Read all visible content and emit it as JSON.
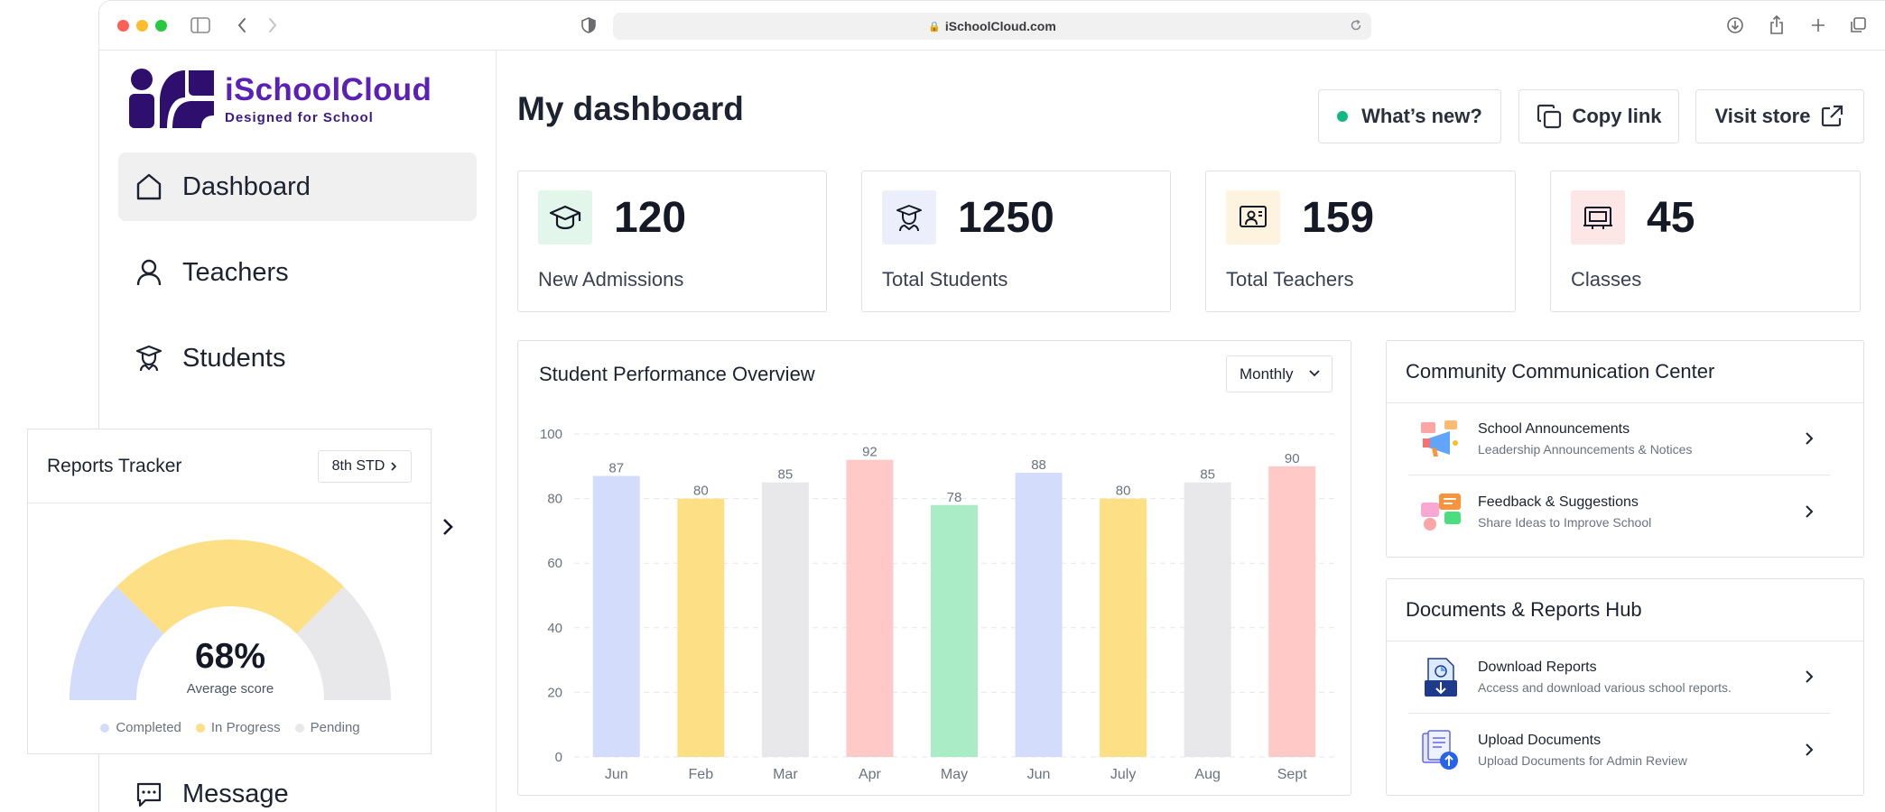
{
  "browser": {
    "url": "iSchoolCloud.com"
  },
  "brand": {
    "name": "iSchoolCloud",
    "tagline": "Designed for School",
    "color": "#5b21b6"
  },
  "sidebar": {
    "items": [
      {
        "label": "Dashboard",
        "icon": "home-icon",
        "active": true
      },
      {
        "label": "Teachers",
        "icon": "user-icon",
        "active": false
      },
      {
        "label": "Students",
        "icon": "student-icon",
        "active": false
      },
      {
        "label": "Message",
        "icon": "message-icon",
        "active": false
      }
    ]
  },
  "header": {
    "title": "My dashboard",
    "whats_new": "What’s new?",
    "copy_link": "Copy link",
    "visit_store": "Visit store"
  },
  "stats": [
    {
      "value": "120",
      "label": "New Admissions",
      "icon": "graduation-cap-icon",
      "bg": "#e3f6ec"
    },
    {
      "value": "1250",
      "label": "Total Students",
      "icon": "student-icon",
      "bg": "#eceefb"
    },
    {
      "value": "159",
      "label": "Total Teachers",
      "icon": "teacher-board-icon",
      "bg": "#fdf3df"
    },
    {
      "value": "45",
      "label": "Classes",
      "icon": "classroom-icon",
      "bg": "#fde6e6"
    }
  ],
  "performance": {
    "title": "Student Performance Overview",
    "period": "Monthly"
  },
  "chart_data": {
    "type": "bar",
    "categories": [
      "Jun",
      "Feb",
      "Mar",
      "Apr",
      "May",
      "Jun",
      "July",
      "Aug",
      "Sept"
    ],
    "values": [
      87,
      80,
      85,
      92,
      78,
      88,
      80,
      85,
      90
    ],
    "colors": [
      "#d4dcfb",
      "#fde085",
      "#e8e8ea",
      "#fec9c6",
      "#a9ecc5",
      "#d4dcfb",
      "#fde085",
      "#e8e8ea",
      "#fec9c6"
    ],
    "ylim": [
      0,
      100
    ],
    "yticks": [
      0,
      20,
      40,
      60,
      80,
      100
    ],
    "grid": true
  },
  "community": {
    "title": "Community Communication Center",
    "items": [
      {
        "title": "School Announcements",
        "subtitle": "Leadership Announcements & Notices",
        "icon": "megaphone-icon"
      },
      {
        "title": "Feedback & Suggestions",
        "subtitle": "Share Ideas to Improve School",
        "icon": "feedback-icon"
      }
    ]
  },
  "documents": {
    "title": "Documents & Reports Hub",
    "items": [
      {
        "title": "Download Reports",
        "subtitle": "Access and download various school reports.",
        "icon": "download-report-icon"
      },
      {
        "title": "Upload Documents",
        "subtitle": "Upload Documents for Admin Review",
        "icon": "upload-document-icon"
      }
    ]
  },
  "tracker": {
    "title": "Reports Tracker",
    "grade": "8th STD",
    "percent": "68%",
    "percent_value": 68,
    "subtitle": "Average score",
    "legend": [
      {
        "label": "Completed",
        "color": "#d4dcfb"
      },
      {
        "label": "In Progress",
        "color": "#fde085"
      },
      {
        "label": "Pending",
        "color": "#e8e8ea"
      }
    ]
  }
}
